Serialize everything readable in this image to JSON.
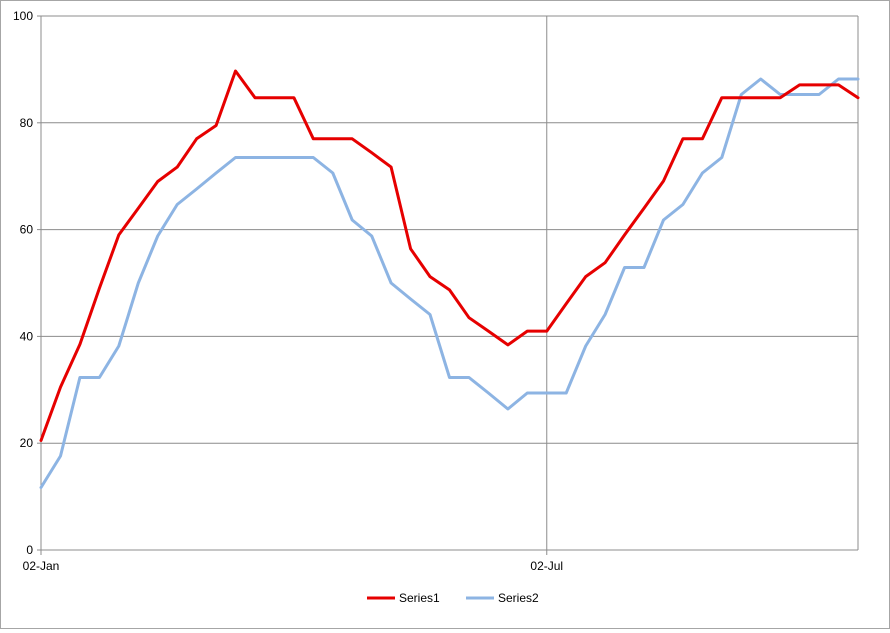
{
  "chart_data": {
    "type": "line",
    "title": "",
    "xlabel": "",
    "ylabel": "",
    "ylim": [
      0,
      100
    ],
    "y_ticks": [
      0,
      20,
      40,
      60,
      80,
      100
    ],
    "y_tick_labels": [
      "0",
      "20",
      "40",
      "60",
      "80",
      "100"
    ],
    "x_ticks": [
      0,
      26
    ],
    "x_tick_labels": [
      "02-Jan",
      "02-Jul"
    ],
    "grid": {
      "horizontal": true,
      "vertical": true
    },
    "legend_position": "bottom",
    "series": [
      {
        "name": "Series1",
        "color": "#e60000",
        "values": [
          20.5,
          30.5,
          38.5,
          49,
          59,
          64,
          69,
          71.7,
          77,
          79.5,
          89.7,
          84.7,
          84.7,
          84.7,
          77,
          77,
          77,
          74.4,
          71.7,
          56.4,
          51.2,
          48.7,
          43.5,
          41,
          38.4,
          41,
          41,
          46.1,
          51.2,
          53.8,
          59,
          64,
          69.1,
          77,
          77,
          84.7,
          84.7,
          84.7,
          84.7,
          87.1,
          87.1,
          87.1,
          84.7
        ]
      },
      {
        "name": "Series2",
        "color": "#8db4e3",
        "values": [
          11.7,
          17.6,
          32.3,
          32.3,
          38.2,
          50,
          58.8,
          64.7,
          67.6,
          70.6,
          73.5,
          73.5,
          73.5,
          73.5,
          73.5,
          70.6,
          61.8,
          58.8,
          50,
          47,
          44.1,
          32.3,
          32.3,
          29.4,
          26.4,
          29.4,
          29.4,
          29.4,
          38.2,
          44.1,
          52.9,
          52.9,
          61.8,
          64.7,
          70.6,
          73.5,
          85.3,
          88.2,
          85.3,
          85.3,
          85.3,
          88.2,
          88.2
        ]
      }
    ]
  }
}
